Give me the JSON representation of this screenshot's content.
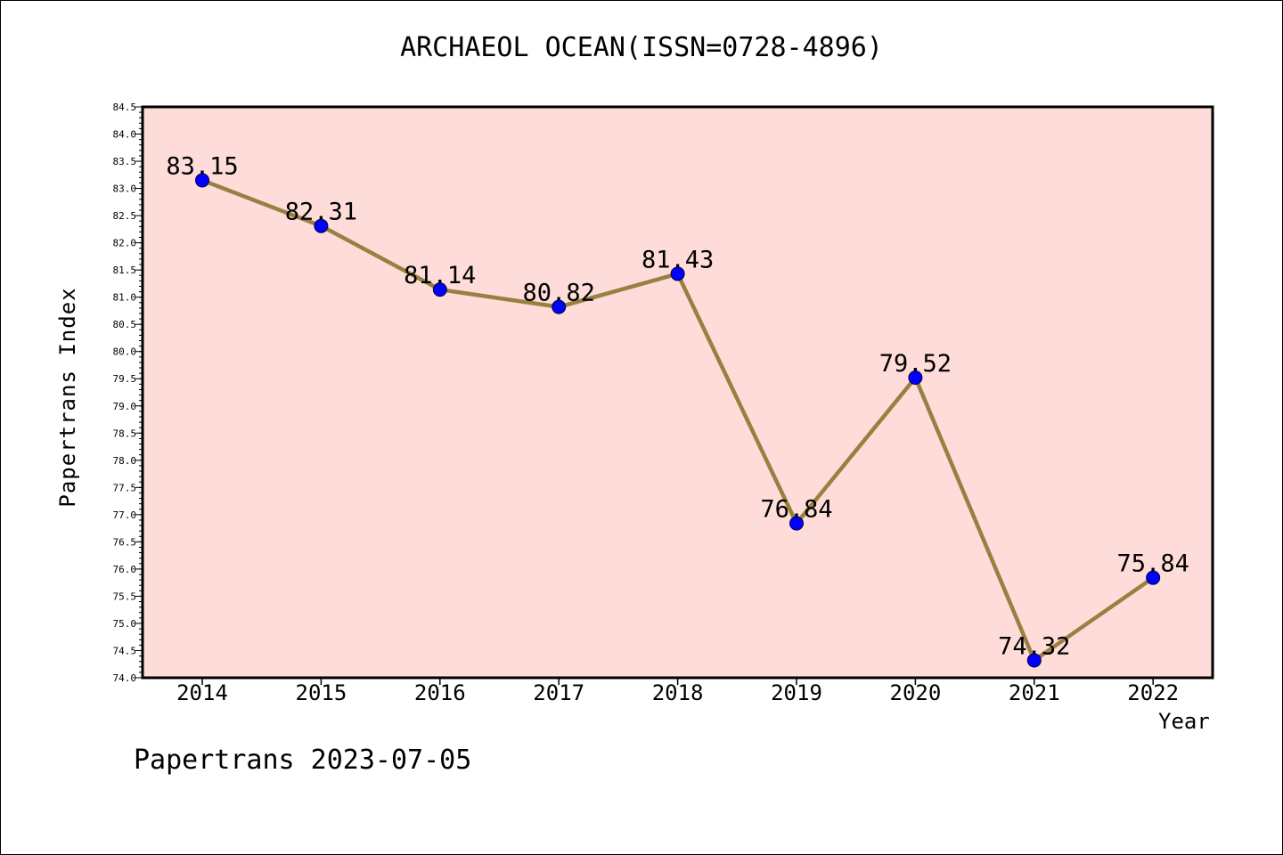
{
  "chart_data": {
    "type": "line",
    "title": "ARCHAEOL OCEAN(ISSN=0728-4896)",
    "xlabel": "Year",
    "ylabel": "Papertrans Index",
    "categories": [
      "2014",
      "2015",
      "2016",
      "2017",
      "2018",
      "2019",
      "2020",
      "2021",
      "2022"
    ],
    "series": [
      {
        "values": [
          83.15,
          82.31,
          81.14,
          80.82,
          81.43,
          76.84,
          79.52,
          74.32,
          75.84
        ]
      }
    ],
    "data_labels": [
      "83.15",
      "82.31",
      "81.14",
      "80.82",
      "81.43",
      "76.84",
      "79.52",
      "74.32",
      "75.84"
    ],
    "ylim": [
      74.0,
      84.5
    ],
    "yticks": [
      "74.0",
      "74.5",
      "75.0",
      "75.5",
      "76.0",
      "76.5",
      "77.0",
      "77.5",
      "78.0",
      "78.5",
      "79.0",
      "79.5",
      "80.0",
      "80.5",
      "81.0",
      "81.5",
      "82.0",
      "82.5",
      "83.0",
      "83.5",
      "84.0",
      "84.5"
    ],
    "grid": false,
    "colors": {
      "plot_background": "#FDDCDA",
      "line": "#9A8040",
      "marker": "#0000FF"
    }
  },
  "footer": "Papertrans 2023-07-05"
}
